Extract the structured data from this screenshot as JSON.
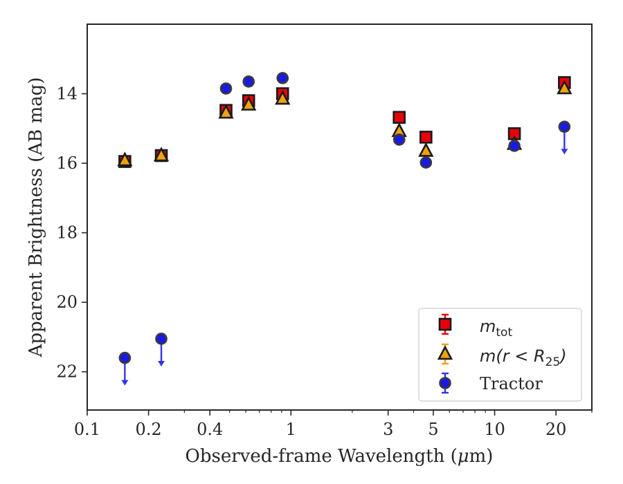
{
  "chart_data": {
    "type": "scatter",
    "xlabel_prefix": "Observed-frame Wavelength (",
    "xlabel_mu": "μ",
    "xlabel_suffix": "m)",
    "ylabel": "Apparent Brightness (AB mag)",
    "xscale": "log",
    "xlim": [
      0.1,
      30
    ],
    "ylim": [
      23.1,
      12.0
    ],
    "y_inverted": true,
    "grid": false,
    "legend_position": "lower-right",
    "x_ticks": [
      {
        "value": 0.1,
        "label": "0.1"
      },
      {
        "value": 0.2,
        "label": "0.2"
      },
      {
        "value": 0.4,
        "label": "0.4"
      },
      {
        "value": 1,
        "label": "1"
      },
      {
        "value": 3,
        "label": "3"
      },
      {
        "value": 5,
        "label": "5"
      },
      {
        "value": 10,
        "label": "10"
      },
      {
        "value": 20,
        "label": "20"
      }
    ],
    "y_ticks": [
      {
        "value": 14,
        "label": "14"
      },
      {
        "value": 16,
        "label": "16"
      },
      {
        "value": 18,
        "label": "18"
      },
      {
        "value": 20,
        "label": "20"
      },
      {
        "value": 22,
        "label": "22"
      }
    ],
    "series": [
      {
        "name": "m_tot",
        "legend_base": "m",
        "legend_sub": "tot",
        "marker": "square",
        "color": "#e8000b",
        "edge": "#1a1a1a",
        "errcolor": "#e8000b",
        "points": [
          {
            "x": 0.153,
            "y": 15.95
          },
          {
            "x": 0.231,
            "y": 15.78
          },
          {
            "x": 0.48,
            "y": 14.48
          },
          {
            "x": 0.62,
            "y": 14.2
          },
          {
            "x": 0.91,
            "y": 14.0
          },
          {
            "x": 3.4,
            "y": 14.68
          },
          {
            "x": 4.6,
            "y": 15.25
          },
          {
            "x": 12.5,
            "y": 15.15
          },
          {
            "x": 22.0,
            "y": 13.68
          }
        ]
      },
      {
        "name": "m(r < R25)",
        "legend_pre": "m(r < R",
        "legend_sub": "25",
        "legend_post": ")",
        "marker": "triangle",
        "color": "#f0a30a",
        "edge": "#1a1a1a",
        "errcolor": "#f0a30a",
        "points": [
          {
            "x": 0.153,
            "y": 15.92
          },
          {
            "x": 0.231,
            "y": 15.78
          },
          {
            "x": 0.48,
            "y": 14.55
          },
          {
            "x": 0.62,
            "y": 14.32
          },
          {
            "x": 0.91,
            "y": 14.15
          },
          {
            "x": 3.4,
            "y": 15.08
          },
          {
            "x": 4.6,
            "y": 15.65
          },
          {
            "x": 12.5,
            "y": 15.45
          },
          {
            "x": 22.0,
            "y": 13.85
          }
        ]
      },
      {
        "name": "Tractor",
        "marker": "circle",
        "color": "#1a1ae6",
        "edge": "#3a3a3a",
        "errcolor": "#3333ee",
        "points": [
          {
            "x": 0.153,
            "y": 21.6,
            "upper_limit": true
          },
          {
            "x": 0.231,
            "y": 21.05,
            "upper_limit": true
          },
          {
            "x": 0.48,
            "y": 13.85
          },
          {
            "x": 0.62,
            "y": 13.65
          },
          {
            "x": 0.91,
            "y": 13.55
          },
          {
            "x": 3.4,
            "y": 15.32
          },
          {
            "x": 4.6,
            "y": 15.98
          },
          {
            "x": 12.5,
            "y": 15.5
          },
          {
            "x": 22.0,
            "y": 14.95,
            "upper_limit": true
          }
        ]
      }
    ]
  }
}
